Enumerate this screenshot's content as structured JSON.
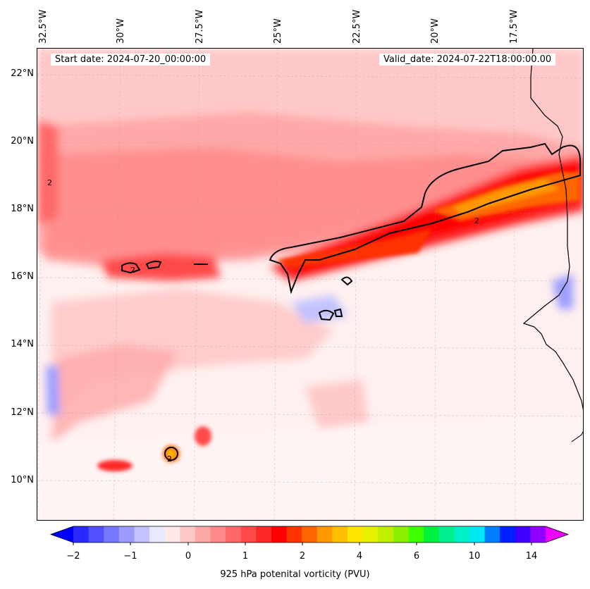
{
  "map": {
    "start_date": "Start date: 2024-07-20_00:00:00",
    "valid_date": "Valid_date: 2024-07-22T18:00:00.00",
    "lon_labels": [
      "32.5°W",
      "30°W",
      "27.5°W",
      "25°W",
      "22.5°W",
      "20°W",
      "17.5°W"
    ],
    "lat_labels": [
      "22°N",
      "20°N",
      "18°N",
      "16°N",
      "14°N",
      "12°N",
      "10°N"
    ],
    "contour_label": "2"
  },
  "colorbar": {
    "label": "925 hPa potenital vorticity (PVU)",
    "tick_labels": [
      "−2",
      "−1",
      "0",
      "1",
      "2",
      "4",
      "6",
      "10",
      "14"
    ],
    "colors": [
      "#0000ff",
      "#2a2aff",
      "#5050ff",
      "#7676ff",
      "#9c9cff",
      "#c2c2ff",
      "#e8e8ff",
      "#ffe8e8",
      "#ffc8c8",
      "#ffa8a8",
      "#ff8888",
      "#ff6868",
      "#ff4848",
      "#ff2828",
      "#ff0000",
      "#ff3300",
      "#ff6600",
      "#ff9900",
      "#ffc000",
      "#ffe600",
      "#e6f000",
      "#c0f000",
      "#8cf000",
      "#3cff00",
      "#00f040",
      "#00f090",
      "#00f0c8",
      "#00e8f0",
      "#0080ff",
      "#0020ff",
      "#4000ff",
      "#9000ff",
      "#ee00ff"
    ]
  }
}
